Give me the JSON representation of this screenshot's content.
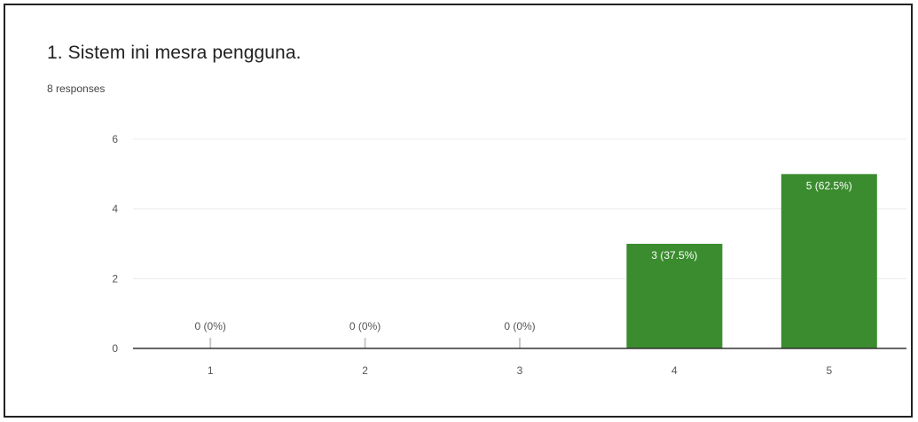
{
  "question": {
    "title": "1. Sistem ini mesra pengguna.",
    "responses": "8 responses"
  },
  "colors": {
    "bar": "#3b8c2f",
    "bar_label_inside": "#ffffff",
    "bar_label_outside": "#555555",
    "grid": "#ececec",
    "baseline": "#333333"
  },
  "chart_data": {
    "type": "bar",
    "title": "",
    "xlabel": "",
    "ylabel": "",
    "categories": [
      "1",
      "2",
      "3",
      "4",
      "5"
    ],
    "values": [
      0,
      0,
      0,
      3,
      5
    ],
    "data_labels": [
      "0 (0%)",
      "0 (0%)",
      "0 (0%)",
      "3 (37.5%)",
      "5 (62.5%)"
    ],
    "ylim": [
      0,
      6
    ],
    "yticks": [
      "0",
      "2",
      "4",
      "6"
    ],
    "grid": true,
    "legend": "none"
  }
}
